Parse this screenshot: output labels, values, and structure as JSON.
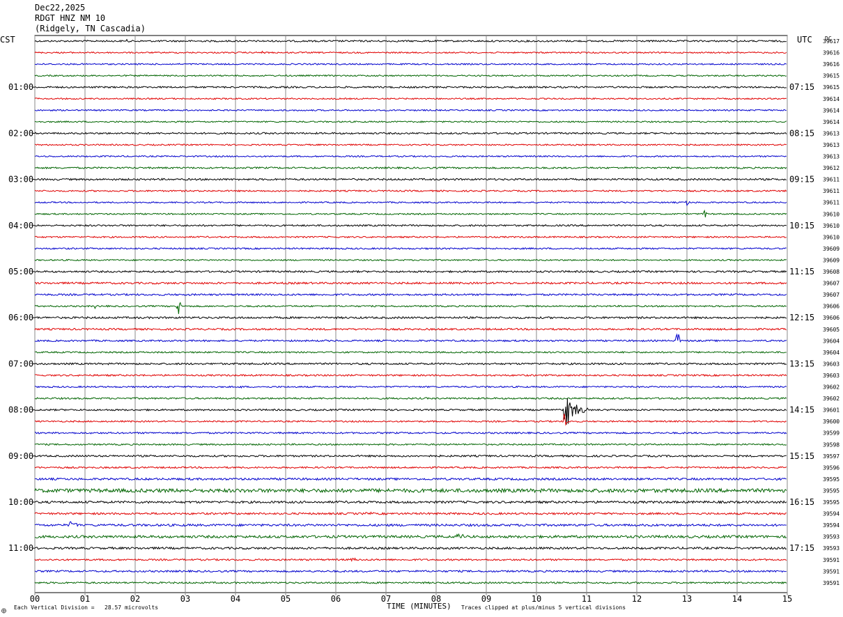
{
  "header": {
    "date": "Dec22,2025",
    "station": "RDGT HNZ NM 10",
    "location": "(Ridgely, TN Cascadia)"
  },
  "left_tz": "CST",
  "right_tz": "UTC",
  "dc_label": "DC",
  "footer": {
    "scale_note": "Each Vertical Division =   28.57 microvolts",
    "xlabel": "TIME (MINUTES)",
    "clip_note": "Traces clipped at plus/minus 5 vertical divisions",
    "corner_mark": "⨁"
  },
  "chart_data": {
    "type": "line",
    "title": "RDGT HNZ NM 10",
    "xlabel": "TIME (MINUTES)",
    "xlim": [
      0,
      15
    ],
    "x_ticks": [
      "00",
      "01",
      "02",
      "03",
      "04",
      "05",
      "06",
      "07",
      "08",
      "09",
      "10",
      "11",
      "12",
      "13",
      "14",
      "15"
    ],
    "grid": true,
    "trace_colors": [
      "#000000",
      "#e00000",
      "#0000cc",
      "#006400"
    ],
    "left_time_labels": [
      {
        "trace": 4,
        "label": "01:00"
      },
      {
        "trace": 8,
        "label": "02:00"
      },
      {
        "trace": 12,
        "label": "03:00"
      },
      {
        "trace": 16,
        "label": "04:00"
      },
      {
        "trace": 20,
        "label": "05:00"
      },
      {
        "trace": 24,
        "label": "06:00"
      },
      {
        "trace": 28,
        "label": "07:00"
      },
      {
        "trace": 32,
        "label": "08:00"
      },
      {
        "trace": 36,
        "label": "09:00"
      },
      {
        "trace": 40,
        "label": "10:00"
      },
      {
        "trace": 44,
        "label": "11:00"
      }
    ],
    "right_time_labels": [
      {
        "trace": 4,
        "label": "07:15"
      },
      {
        "trace": 8,
        "label": "08:15"
      },
      {
        "trace": 12,
        "label": "09:15"
      },
      {
        "trace": 16,
        "label": "10:15"
      },
      {
        "trace": 20,
        "label": "11:15"
      },
      {
        "trace": 24,
        "label": "12:15"
      },
      {
        "trace": 28,
        "label": "13:15"
      },
      {
        "trace": 32,
        "label": "14:15"
      },
      {
        "trace": 36,
        "label": "15:15"
      },
      {
        "trace": 40,
        "label": "16:15"
      },
      {
        "trace": 44,
        "label": "17:15"
      }
    ],
    "dc_offsets": [
      "39617",
      "39616",
      "39616",
      "39615",
      "39615",
      "39614",
      "39614",
      "39614",
      "39613",
      "39613",
      "39613",
      "39612",
      "39611",
      "39611",
      "39611",
      "39610",
      "39610",
      "39610",
      "39609",
      "39609",
      "39608",
      "39607",
      "39607",
      "39606",
      "39606",
      "39605",
      "39604",
      "39604",
      "39603",
      "39603",
      "39602",
      "39602",
      "39601",
      "39600",
      "39599",
      "39598",
      "39597",
      "39596",
      "39595",
      "39595",
      "39595",
      "39594",
      "39594",
      "39593",
      "39593",
      "39591",
      "39591",
      "39591"
    ],
    "noise_levels": [
      1.2,
      1.0,
      1.0,
      1.0,
      1.2,
      1.0,
      1.0,
      1.0,
      1.2,
      1.0,
      1.0,
      1.2,
      1.3,
      1.1,
      1.0,
      1.0,
      1.2,
      1.1,
      1.1,
      1.0,
      1.3,
      1.4,
      1.3,
      1.1,
      1.4,
      1.3,
      1.2,
      1.1,
      1.3,
      1.2,
      1.1,
      1.2,
      1.2,
      1.1,
      1.2,
      1.1,
      1.3,
      1.2,
      1.5,
      2.6,
      1.6,
      1.4,
      1.6,
      1.8,
      1.5,
      1.2,
      1.3,
      1.2
    ],
    "events": [
      {
        "trace": 0,
        "minute": 1.8,
        "amplitude": 7,
        "duration": 0.08
      },
      {
        "trace": 1,
        "minute": 4.5,
        "amplitude": 3,
        "duration": 0.15
      },
      {
        "trace": 14,
        "minute": 13.0,
        "amplitude": 8,
        "duration": 0.06
      },
      {
        "trace": 15,
        "minute": 13.35,
        "amplitude": 11,
        "duration": 0.06
      },
      {
        "trace": 23,
        "minute": 2.85,
        "amplitude": 28,
        "duration": 0.08
      },
      {
        "trace": 23,
        "minute": 1.2,
        "amplitude": 4,
        "duration": 0.05
      },
      {
        "trace": 26,
        "minute": 12.8,
        "amplitude": 25,
        "duration": 0.1
      },
      {
        "trace": 30,
        "minute": 4.0,
        "amplitude": 6,
        "duration": 0.15
      },
      {
        "trace": 32,
        "minute": 10.55,
        "amplitude": 32,
        "duration": 0.5
      },
      {
        "trace": 33,
        "minute": 10.55,
        "amplitude": 14,
        "duration": 0.1
      },
      {
        "trace": 41,
        "minute": 6.6,
        "amplitude": 5,
        "duration": 0.2
      },
      {
        "trace": 42,
        "minute": 0.7,
        "amplitude": 5,
        "duration": 0.4
      },
      {
        "trace": 43,
        "minute": 8.4,
        "amplitude": 6,
        "duration": 0.3
      },
      {
        "trace": 45,
        "minute": 6.3,
        "amplitude": 6,
        "duration": 0.2
      }
    ]
  }
}
